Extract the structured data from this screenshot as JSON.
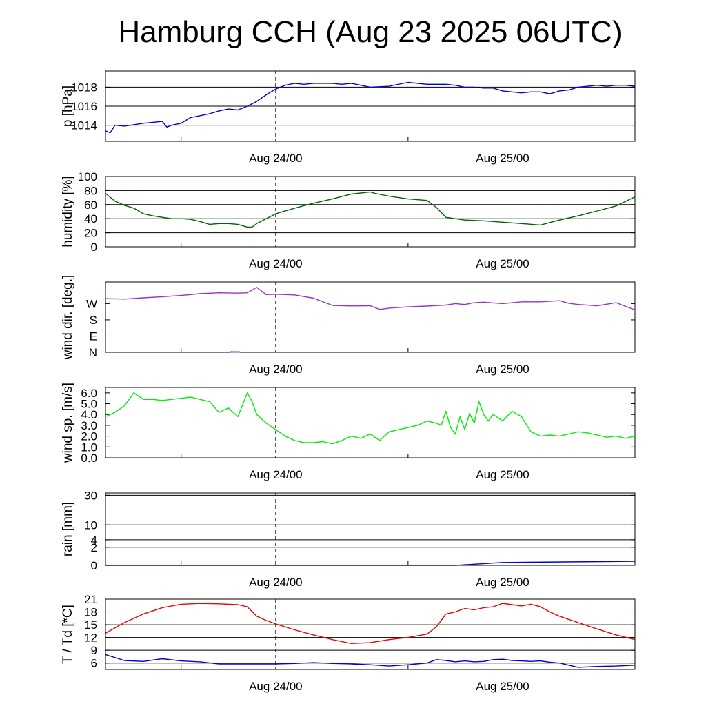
{
  "title": "Hamburg CCH (Aug 23 2025 06UTC)",
  "colors": {
    "pressure": "#0000dd",
    "humidity": "#006400",
    "wind_dir": "#9933cc",
    "wind_speed": "#00ee00",
    "rain": "#0000dd",
    "temperature": "#ee0000",
    "dewpoint": "#0000dd"
  },
  "chart_data": [
    {
      "type": "line",
      "ylabel": "p [hPa]",
      "ylim": [
        1012.3,
        1019.7
      ],
      "yticks": [
        1014,
        1016,
        1018
      ],
      "ytick_labels": [
        "1014",
        "1016",
        "1018"
      ],
      "grid": true,
      "x_hours": [
        0,
        0.5,
        1,
        2,
        4,
        6,
        6.5,
        7,
        8,
        9,
        10,
        11,
        12,
        13,
        14,
        15,
        16,
        17,
        18,
        19,
        20,
        21,
        22,
        23,
        24,
        25,
        26,
        27,
        28,
        30,
        32,
        34,
        36,
        37,
        38,
        39,
        40,
        41,
        42,
        43,
        44,
        45,
        46,
        47,
        48,
        49,
        50,
        51,
        52,
        53,
        54,
        55,
        56
      ],
      "series": [
        {
          "name": "",
          "values": [
            1013.4,
            1013.2,
            1014.0,
            1013.9,
            1014.2,
            1014.4,
            1013.8,
            1014.0,
            1014.2,
            1014.8,
            1015.0,
            1015.2,
            1015.5,
            1015.7,
            1015.6,
            1016.0,
            1016.5,
            1017.2,
            1017.8,
            1018.2,
            1018.4,
            1018.3,
            1018.4,
            1018.4,
            1018.4,
            1018.3,
            1018.4,
            1018.2,
            1018.0,
            1018.1,
            1018.5,
            1018.3,
            1018.3,
            1018.2,
            1018.0,
            1018.0,
            1017.9,
            1017.9,
            1017.6,
            1017.5,
            1017.4,
            1017.5,
            1017.5,
            1017.3,
            1017.6,
            1017.7,
            1018.0,
            1018.1,
            1018.2,
            1018.1,
            1018.2,
            1018.2,
            1018.1
          ]
        }
      ]
    },
    {
      "type": "line",
      "ylabel": "humidity [%]",
      "ylim": [
        0,
        100
      ],
      "yticks": [
        0,
        20,
        40,
        60,
        80,
        100
      ],
      "ytick_labels": [
        "0",
        "20",
        "40",
        "60",
        "80",
        "100"
      ],
      "grid": true,
      "x_hours": [
        0,
        1,
        2,
        3,
        4,
        5,
        6,
        7,
        8,
        9,
        10,
        11,
        12,
        13,
        14,
        15,
        15.5,
        16,
        17,
        18,
        20,
        22,
        24,
        26,
        28,
        28.5,
        30,
        32,
        34,
        35,
        36,
        38,
        40,
        42,
        44,
        46,
        48,
        50,
        52,
        54,
        56
      ],
      "series": [
        {
          "name": "",
          "values": [
            76,
            65,
            59,
            55,
            47,
            44,
            42,
            40,
            40,
            39,
            36,
            32,
            33,
            33,
            32,
            28,
            28,
            33,
            40,
            47,
            55,
            62,
            68,
            75,
            78,
            76,
            72,
            68,
            66,
            56,
            42,
            38,
            37,
            35,
            33,
            31,
            38,
            44,
            51,
            58,
            71
          ]
        }
      ]
    },
    {
      "type": "line",
      "ylabel": "wind dir. [deg.]",
      "ylim": [
        0,
        390
      ],
      "yticks": [
        0,
        90,
        180,
        270
      ],
      "ytick_labels": [
        "N",
        "E",
        "S",
        "W"
      ],
      "grid": false,
      "x_hours": [
        0,
        2,
        4,
        6,
        8,
        10,
        12,
        14,
        15,
        16,
        17,
        18,
        20,
        22,
        24,
        26,
        28,
        29,
        30,
        32,
        34,
        36,
        37,
        38,
        39,
        40,
        42,
        44,
        46,
        48,
        49,
        50,
        52,
        54,
        56
      ],
      "series": [
        {
          "name": "",
          "values": [
            298,
            295,
            302,
            308,
            315,
            325,
            330,
            328,
            330,
            360,
            320,
            322,
            318,
            300,
            260,
            257,
            258,
            238,
            245,
            252,
            256,
            262,
            270,
            265,
            275,
            278,
            270,
            280,
            280,
            286,
            272,
            265,
            258,
            275,
            235
          ]
        },
        {
          "name": "",
          "values": []
        }
      ],
      "extra_marks": {
        "x_hours": [
          13.2,
          14.2
        ],
        "value": 2
      }
    },
    {
      "type": "line",
      "ylabel": "wind sp. [m/s]",
      "ylim": [
        0,
        6.5
      ],
      "yticks": [
        0,
        1,
        2,
        3,
        4,
        5,
        6
      ],
      "ytick_labels": [
        "0.0",
        "1.0",
        "2.0",
        "3.0",
        "4.0",
        "5.0",
        "6.0"
      ],
      "grid": false,
      "x_hours": [
        0,
        1,
        2,
        3,
        4,
        5,
        6,
        7,
        8,
        9,
        10,
        11,
        12,
        13,
        14,
        15,
        15.5,
        16,
        17,
        18,
        19,
        20,
        21,
        22,
        23,
        24,
        25,
        26,
        27,
        28,
        29,
        30,
        31,
        32,
        33,
        34,
        35,
        35.5,
        36,
        36.5,
        37,
        37.5,
        38,
        38.5,
        39,
        39.5,
        40,
        40.5,
        41,
        42,
        43,
        44,
        45,
        46,
        47,
        48,
        49,
        50,
        51,
        52,
        53,
        54,
        55,
        56
      ],
      "series": [
        {
          "name": "",
          "values": [
            3.8,
            4.2,
            4.8,
            6.0,
            5.4,
            5.4,
            5.3,
            5.4,
            5.5,
            5.6,
            5.4,
            5.2,
            4.2,
            4.6,
            3.8,
            6.0,
            5.2,
            4.0,
            3.2,
            2.6,
            2.0,
            1.6,
            1.4,
            1.4,
            1.5,
            1.3,
            1.6,
            2.0,
            1.8,
            2.2,
            1.6,
            2.4,
            2.6,
            2.8,
            3.0,
            3.4,
            3.2,
            3.0,
            4.3,
            2.8,
            2.2,
            3.8,
            2.6,
            4.1,
            3.2,
            5.2,
            4.0,
            3.4,
            4.0,
            3.4,
            4.3,
            3.8,
            2.4,
            2.0,
            2.1,
            2.0,
            2.2,
            2.4,
            2.3,
            2.1,
            1.9,
            2.0,
            1.8,
            2.0
          ]
        }
      ]
    },
    {
      "type": "line",
      "ylabel": "rain [mm]",
      "ylim": [
        0,
        32
      ],
      "yticks": [
        0,
        2,
        4,
        10,
        30
      ],
      "ytick_labels": [
        "0",
        "2",
        "4",
        "10",
        "30"
      ],
      "grid": true,
      "x_hours": [
        0,
        37,
        42,
        56
      ],
      "series": [
        {
          "name": "",
          "values": [
            0,
            0,
            0.05,
            0.1
          ]
        }
      ]
    },
    {
      "type": "line",
      "ylabel": "T / Td [*C]",
      "ylim": [
        4.5,
        21
      ],
      "yticks": [
        6,
        9,
        12,
        15,
        18,
        21
      ],
      "ytick_labels": [
        "6",
        "9",
        "12",
        "15",
        "18",
        "21"
      ],
      "grid": true,
      "x_hours": [
        0,
        2,
        4,
        6,
        8,
        10,
        12,
        14,
        15,
        16,
        17,
        18,
        20,
        22,
        24,
        26,
        28,
        30,
        32,
        34,
        35,
        36,
        37,
        38,
        39,
        40,
        41,
        42,
        43,
        44,
        45,
        46,
        47,
        48,
        50,
        52,
        54,
        56
      ],
      "series": [
        {
          "name": "T",
          "values": [
            13.0,
            15.5,
            17.5,
            19.0,
            19.8,
            20.0,
            19.9,
            19.7,
            19.2,
            17.0,
            16.0,
            15.2,
            13.8,
            12.6,
            11.5,
            10.6,
            10.8,
            11.5,
            12.0,
            12.8,
            14.5,
            17.5,
            18.0,
            18.8,
            18.5,
            19.0,
            19.2,
            20.0,
            19.7,
            19.4,
            19.8,
            19.2,
            18.0,
            17.0,
            15.5,
            14.0,
            12.6,
            11.5
          ]
        },
        {
          "name": "Td",
          "values": [
            8.0,
            6.6,
            6.4,
            7.0,
            6.5,
            6.3,
            5.8,
            5.8,
            5.8,
            5.8,
            5.8,
            5.8,
            5.9,
            6.1,
            5.9,
            5.8,
            5.6,
            5.3,
            5.6,
            6.0,
            6.8,
            6.6,
            6.3,
            6.5,
            6.3,
            6.4,
            6.8,
            6.9,
            6.6,
            6.5,
            6.4,
            6.5,
            6.2,
            6.0,
            5.0,
            5.2,
            5.3,
            5.5
          ]
        }
      ]
    }
  ],
  "x_axis": {
    "tick_labels": [
      "Aug 24/00",
      "Aug 25/00"
    ],
    "tick_hours": [
      18,
      42
    ],
    "minor_tick_hours": [
      6,
      30,
      54
    ],
    "dashed_line_hour": 18,
    "range_hours": [
      -8,
      48
    ]
  }
}
